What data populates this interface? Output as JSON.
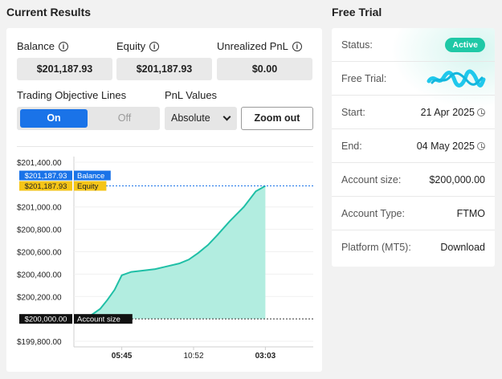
{
  "results_title": "Current Results",
  "trial_title": "Free Trial",
  "metrics": [
    {
      "label": "Balance",
      "value": "$201,187.93"
    },
    {
      "label": "Equity",
      "value": "$201,187.93"
    },
    {
      "label": "Unrealized PnL",
      "value": "$0.00"
    }
  ],
  "controls": {
    "objective_label": "Trading Objective Lines",
    "on_label": "On",
    "off_label": "Off",
    "pnl_label": "PnL Values",
    "pnl_selected": "Absolute",
    "zoom_label": "Zoom out"
  },
  "chart_data": {
    "type": "area",
    "y_ticks": [
      "$201,400.00",
      "$201,000.00",
      "$200,800.00",
      "$200,600.00",
      "$200,400.00",
      "$200,200.00",
      "$199,800.00"
    ],
    "y_tick_values": [
      201400,
      201000,
      200800,
      200600,
      200400,
      200200,
      199800
    ],
    "ylim": [
      199750,
      201450
    ],
    "x_ticks": [
      {
        "label": "05:45",
        "bold": true,
        "t": 0.2
      },
      {
        "label": "10:52",
        "bold": false,
        "t": 0.5
      },
      {
        "label": "03:03",
        "bold": true,
        "t": 0.8
      }
    ],
    "xlim": [
      0,
      1
    ],
    "series": [
      {
        "t": [
          0.04,
          0.07,
          0.11,
          0.14,
          0.17,
          0.2,
          0.24,
          0.28,
          0.34,
          0.38,
          0.44,
          0.48,
          0.52,
          0.56,
          0.6,
          0.65,
          0.71,
          0.76,
          0.8
        ],
        "values": [
          200000,
          200030,
          200090,
          200170,
          200260,
          200390,
          200420,
          200430,
          200445,
          200465,
          200495,
          200530,
          200590,
          200660,
          200750,
          200870,
          201000,
          201140,
          201187.93
        ]
      }
    ],
    "reference_lines": [
      {
        "value": 201187.93,
        "tags": [
          {
            "value_label": "$201,187.93",
            "name": "Balance",
            "color": "#1a73e8"
          },
          {
            "value_label": "$201,187.93",
            "name": "Equity",
            "color": "#f5c518"
          }
        ]
      },
      {
        "value": 200000,
        "tags": [
          {
            "value_label": "$200,000.00",
            "name": "Account size",
            "color": "#111111"
          }
        ]
      }
    ],
    "line_color": "#1fbfa6",
    "fill_color": "#b2ede0",
    "grid": true
  },
  "trial": {
    "status_key": "Status:",
    "status_value": "Active",
    "trial_key": "Free Trial:",
    "start_key": "Start:",
    "start_value": "21 Apr 2025",
    "end_key": "End:",
    "end_value": "04 May 2025",
    "size_key": "Account size:",
    "size_value": "$200,000.00",
    "type_key": "Account Type:",
    "type_value": "FTMO",
    "platform_key": "Platform (MT5):",
    "platform_value": "Download"
  }
}
